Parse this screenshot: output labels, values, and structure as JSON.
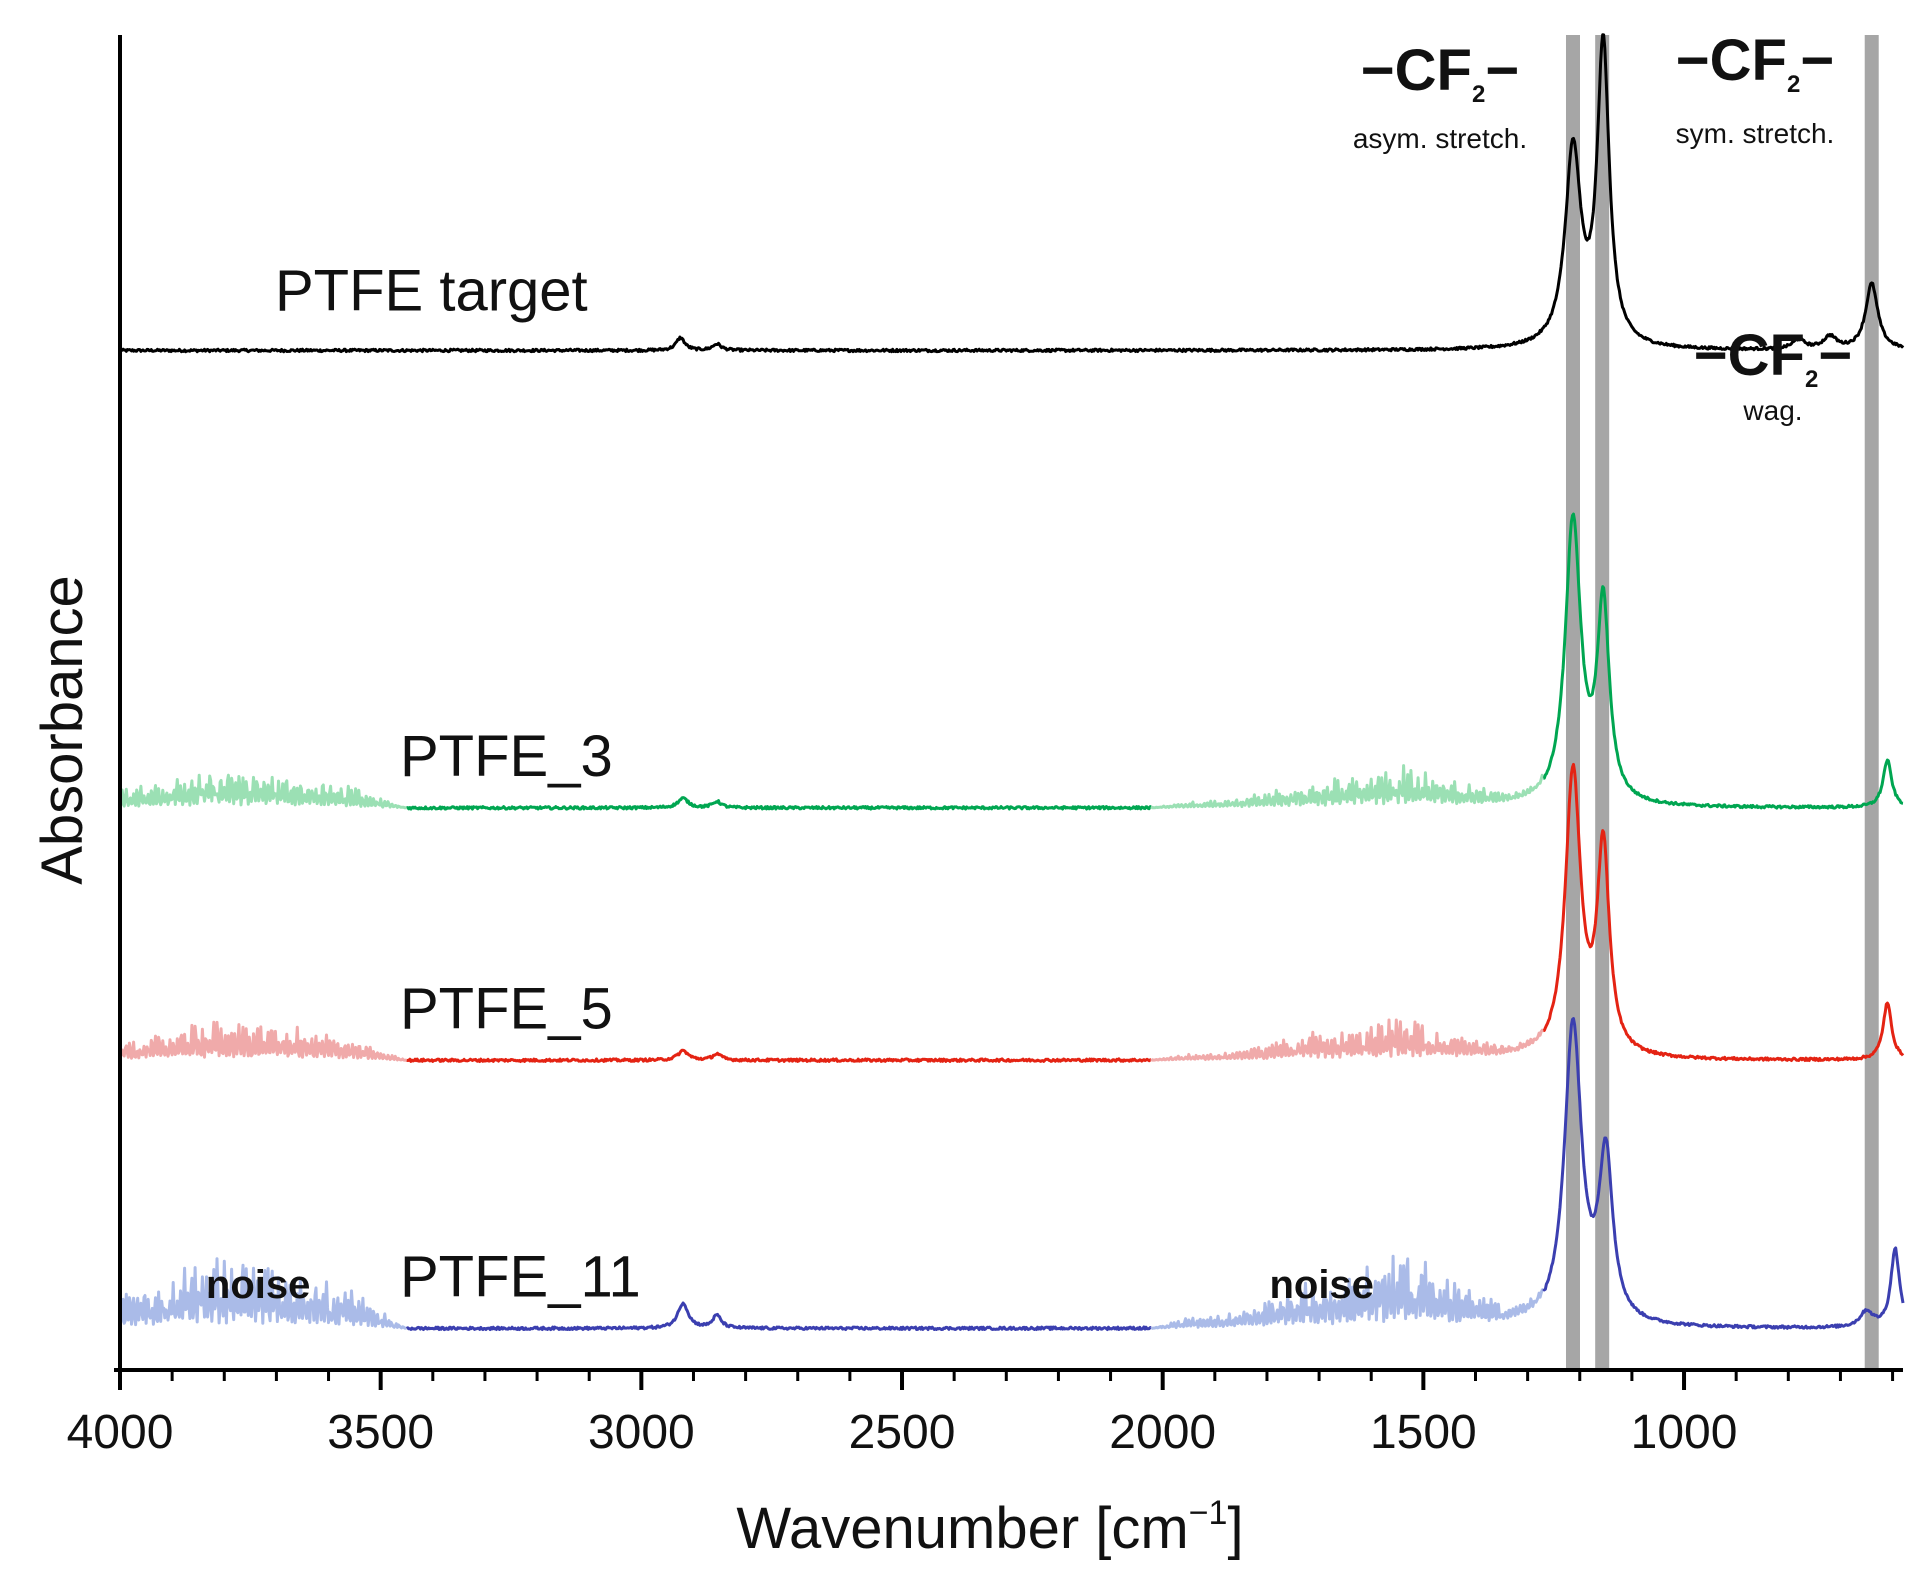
{
  "chart_data": {
    "type": "line",
    "title": "",
    "xlabel_text": "Wavenumber [cm",
    "xlabel_sup": "−1",
    "xlabel_close": "]",
    "ylabel": "Absorbance",
    "xlim": [
      4000,
      580
    ],
    "x_reversed": true,
    "xticks": [
      4000,
      3500,
      3000,
      2500,
      2000,
      1500,
      1000
    ],
    "xtick_labels": [
      "4000",
      "3500",
      "3000",
      "2500",
      "2000",
      "1500",
      "1000"
    ],
    "ylim": [
      0,
      4.2
    ],
    "y_tick_labels_shown": false,
    "grid": false,
    "noise_regions": [
      [
        4000,
        3450
      ],
      [
        2020,
        1270
      ]
    ],
    "highlight_bands": [
      {
        "center": 1213,
        "title": "−CF",
        "sub": "2",
        "dash": "−",
        "note": "asym. stretch."
      },
      {
        "center": 1157,
        "title": "−CF",
        "sub": "2",
        "dash": "−",
        "note": "sym. stretch."
      },
      {
        "center": 640,
        "title": "−CF",
        "sub": "2",
        "dash": "−",
        "note": "wag."
      }
    ],
    "series": [
      {
        "name": "PTFE target",
        "color": "#000000",
        "noise_color": "#000000",
        "baseline": 3.2,
        "noisy": false,
        "peaks": [
          {
            "x": 2925,
            "h": 0.04,
            "w": 10
          },
          {
            "x": 2855,
            "h": 0.02,
            "w": 10
          },
          {
            "x": 1213,
            "h": 0.62,
            "w": 18
          },
          {
            "x": 1155,
            "h": 0.95,
            "w": 14
          },
          {
            "x": 780,
            "h": 0.03,
            "w": 15
          },
          {
            "x": 720,
            "h": 0.04,
            "w": 15
          },
          {
            "x": 640,
            "h": 0.21,
            "w": 14
          }
        ]
      },
      {
        "name": "PTFE_3",
        "color": "#00a651",
        "noise_color": "#9be0b4",
        "baseline": 1.75,
        "noisy": true,
        "noise_amp": 0.12,
        "peaks": [
          {
            "x": 2920,
            "h": 0.03,
            "w": 12
          },
          {
            "x": 2855,
            "h": 0.02,
            "w": 10
          },
          {
            "x": 1213,
            "h": 0.9,
            "w": 18
          },
          {
            "x": 1155,
            "h": 0.62,
            "w": 14
          },
          {
            "x": 610,
            "h": 0.15,
            "w": 10
          }
        ]
      },
      {
        "name": "PTFE_5",
        "color": "#e42313",
        "noise_color": "#f0aaaa",
        "baseline": 0.95,
        "noisy": true,
        "noise_amp": 0.12,
        "peaks": [
          {
            "x": 2920,
            "h": 0.03,
            "w": 12
          },
          {
            "x": 2855,
            "h": 0.02,
            "w": 10
          },
          {
            "x": 1213,
            "h": 0.9,
            "w": 18
          },
          {
            "x": 1155,
            "h": 0.65,
            "w": 14
          },
          {
            "x": 610,
            "h": 0.18,
            "w": 10
          }
        ]
      },
      {
        "name": "PTFE_11",
        "color": "#3b3fb0",
        "noise_color": "#aabbe8",
        "baseline": 0.1,
        "noisy": true,
        "noise_amp": 0.22,
        "peaks": [
          {
            "x": 2920,
            "h": 0.08,
            "w": 12
          },
          {
            "x": 2855,
            "h": 0.04,
            "w": 10
          },
          {
            "x": 1213,
            "h": 0.95,
            "w": 20
          },
          {
            "x": 1150,
            "h": 0.52,
            "w": 16
          },
          {
            "x": 650,
            "h": 0.05,
            "w": 15
          },
          {
            "x": 595,
            "h": 0.25,
            "w": 10
          }
        ]
      }
    ],
    "annotations": [
      {
        "text": "noise",
        "x": 3735
      },
      {
        "text": "noise",
        "x": 1695
      }
    ]
  }
}
